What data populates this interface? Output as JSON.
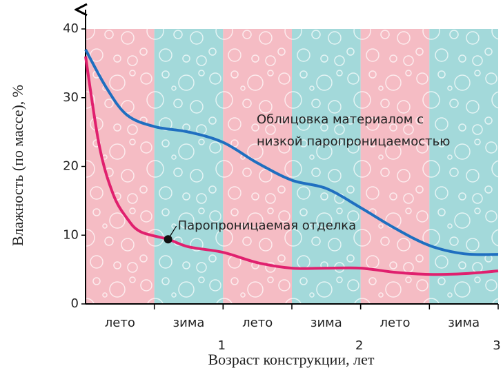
{
  "chart_data": {
    "type": "line",
    "y_label": "Влажность (по массе), %",
    "x_label": "Возраст конструкции, лет",
    "xlim": [
      0,
      3
    ],
    "xticks": [
      1,
      2,
      3
    ],
    "ylim": [
      0,
      40
    ],
    "yticks": [
      0,
      10,
      20,
      30,
      40
    ],
    "bands": [
      {
        "label": "лето",
        "color": "#f5bcc4"
      },
      {
        "label": "зима",
        "color": "#a3d9da"
      },
      {
        "label": "лето",
        "color": "#f5bcc4"
      },
      {
        "label": "зима",
        "color": "#a3d9da"
      },
      {
        "label": "лето",
        "color": "#f5bcc4"
      },
      {
        "label": "зима",
        "color": "#a3d9da"
      }
    ],
    "series": [
      {
        "label_lines": [
          "Облицовка материалом с",
          "низкой паропроницаемостью"
        ],
        "color": "#1f6fc0",
        "x": [
          0,
          0.15,
          0.3,
          0.5,
          0.75,
          1.0,
          1.25,
          1.5,
          1.75,
          2.0,
          2.25,
          2.5,
          2.75,
          3.0
        ],
        "values": [
          37,
          31.5,
          27.5,
          25.8,
          25,
          23.5,
          20.5,
          18,
          16.8,
          14,
          11,
          8.5,
          7.3,
          7.2
        ]
      },
      {
        "label_lines": [
          "Паропроницаемая отделка"
        ],
        "color": "#e0206e",
        "x": [
          0,
          0.1,
          0.2,
          0.3,
          0.4,
          0.6,
          0.75,
          1.0,
          1.25,
          1.5,
          1.75,
          2.0,
          2.25,
          2.5,
          2.75,
          3.0
        ],
        "values": [
          36,
          23,
          16,
          12.5,
          10.5,
          9.4,
          8.3,
          7.5,
          6,
          5.2,
          5.2,
          5.2,
          4.6,
          4.3,
          4.4,
          4.8
        ],
        "marker_index": 5
      }
    ]
  }
}
